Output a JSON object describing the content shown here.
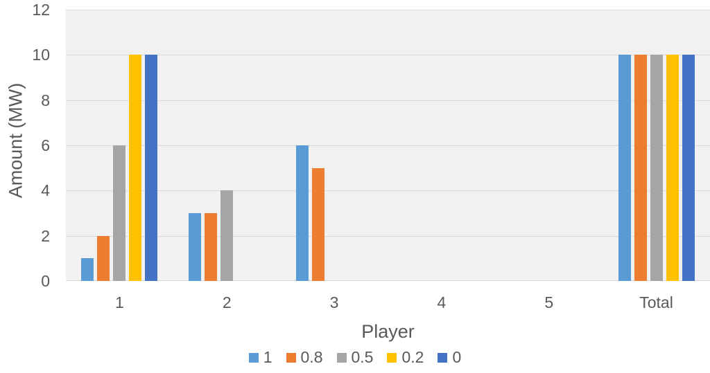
{
  "chart_data": {
    "type": "bar",
    "title": "",
    "xlabel": "Player",
    "ylabel": "Amount (MW)",
    "categories": [
      "1",
      "2",
      "3",
      "4",
      "5",
      "Total"
    ],
    "series": [
      {
        "name": "1",
        "color": "#5B9BD5",
        "values": [
          1,
          3,
          6,
          0,
          0,
          10
        ]
      },
      {
        "name": "0.8",
        "color": "#ED7D31",
        "values": [
          2,
          3,
          5,
          0,
          0,
          10
        ]
      },
      {
        "name": "0.5",
        "color": "#A5A5A5",
        "values": [
          6,
          4,
          0,
          0,
          0,
          10
        ]
      },
      {
        "name": "0.2",
        "color": "#FFC000",
        "values": [
          10,
          0,
          0,
          0,
          0,
          10
        ]
      },
      {
        "name": "0",
        "color": "#4472C4",
        "values": [
          10,
          0,
          0,
          0,
          0,
          10
        ]
      }
    ],
    "ylim": [
      0,
      12
    ],
    "ytick_step": 2,
    "yticks": [
      "0",
      "2",
      "4",
      "6",
      "8",
      "10",
      "12"
    ],
    "grid": true,
    "legend_position": "bottom",
    "plot_bg_color": "#F1F1F1",
    "gridline_color": "#D9D9D9",
    "text_color": "#595959"
  }
}
